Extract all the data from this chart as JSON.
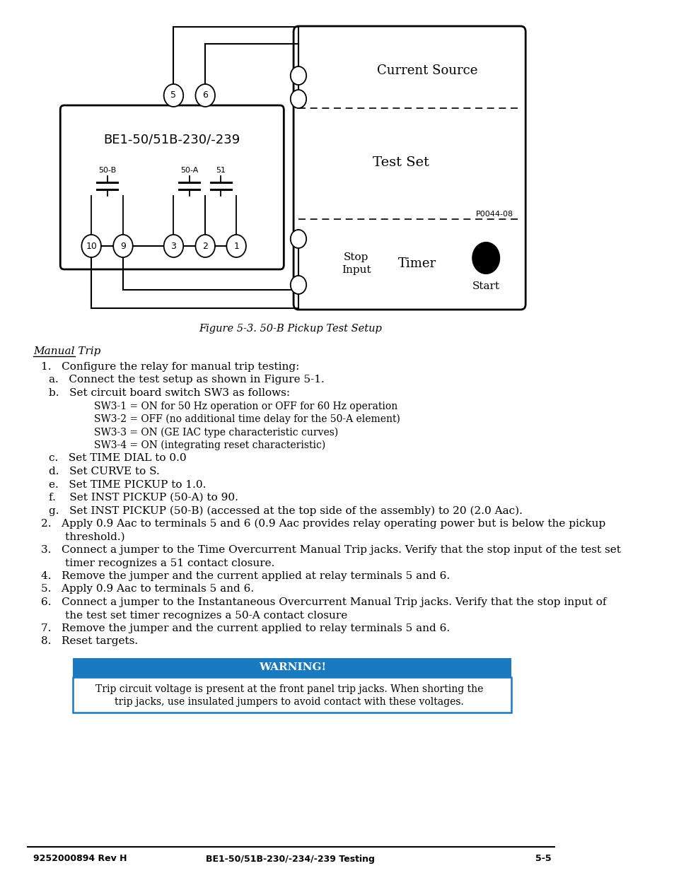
{
  "figure_caption": "Figure 5-3. 50-B Pickup Test Setup",
  "section_title": "Manual Trip",
  "background_color": "#ffffff",
  "warning_header_bg": "#1a7abf",
  "warning_header_text": "WARNING!",
  "warning_body_line1": "Trip circuit voltage is present at the front panel trip jacks. When shorting the",
  "warning_body_line2": "trip jacks, use insulated jumpers to avoid contact with these voltages.",
  "footer_left": "9252000894 Rev H",
  "footer_center": "BE1-50/51B-230/-234/-239 Testing",
  "footer_right": "5-5",
  "relay_box_label": "BE1-50/51B-230/-239",
  "terminal_labels": [
    "10",
    "9",
    "3",
    "2",
    "1"
  ],
  "terminal_top": [
    "5",
    "6"
  ],
  "current_source_label": "Current Source",
  "test_set_label": "Test Set",
  "p_label": "P0044-08",
  "stop_input_label": "Stop\nInput",
  "timer_label": "Timer",
  "start_label": "Start"
}
